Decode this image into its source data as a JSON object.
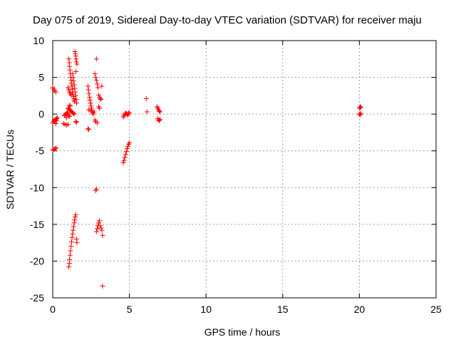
{
  "chart_data": {
    "type": "scatter",
    "title": "Day 075 of 2019, Sidereal Day-to-day VTEC variation (SDTVAR) for receiver maju",
    "xlabel": "GPS time / hours",
    "ylabel": "SDTVAR / TECUs",
    "xlim": [
      0,
      25
    ],
    "ylim": [
      -25,
      10
    ],
    "xticks": [
      0,
      5,
      10,
      15,
      20,
      25
    ],
    "yticks": [
      10,
      5,
      0,
      -5,
      -10,
      -15,
      -20,
      -25
    ],
    "grid": true,
    "marker": "+",
    "series": [
      {
        "name": "SDTVAR",
        "color": "#ff0000",
        "points": [
          [
            0.0,
            3.6
          ],
          [
            0.05,
            3.4
          ],
          [
            0.12,
            3.2
          ],
          [
            0.2,
            3.0
          ],
          [
            0.0,
            -1.2
          ],
          [
            0.05,
            -1.0
          ],
          [
            0.1,
            -0.9
          ],
          [
            0.15,
            -0.8
          ],
          [
            0.2,
            -0.7
          ],
          [
            0.25,
            -0.6
          ],
          [
            0.3,
            -0.5
          ],
          [
            0.2,
            -1.3
          ],
          [
            0.25,
            -0.9
          ],
          [
            0.0,
            -4.9
          ],
          [
            0.08,
            -4.8
          ],
          [
            0.15,
            -4.7
          ],
          [
            0.22,
            -4.6
          ],
          [
            0.7,
            -1.3
          ],
          [
            0.8,
            -1.4
          ],
          [
            0.9,
            -1.5
          ],
          [
            1.0,
            -1.4
          ],
          [
            0.75,
            -0.2
          ],
          [
            0.8,
            -0.1
          ],
          [
            0.85,
            0.0
          ],
          [
            0.9,
            0.1
          ],
          [
            0.95,
            0.2
          ],
          [
            1.0,
            0.0
          ],
          [
            1.05,
            -0.2
          ],
          [
            1.1,
            -0.3
          ],
          [
            0.9,
            -0.5
          ],
          [
            1.0,
            0.8
          ],
          [
            1.05,
            0.7
          ],
          [
            1.1,
            0.6
          ],
          [
            1.15,
            0.5
          ],
          [
            1.2,
            0.4
          ],
          [
            1.25,
            0.3
          ],
          [
            1.3,
            0.2
          ],
          [
            1.35,
            0.1
          ],
          [
            1.4,
            0.0
          ],
          [
            1.05,
            7.5
          ],
          [
            1.08,
            7.0
          ],
          [
            1.1,
            6.5
          ],
          [
            1.12,
            6.0
          ],
          [
            1.15,
            5.5
          ],
          [
            1.18,
            5.0
          ],
          [
            1.2,
            4.6
          ],
          [
            1.22,
            4.2
          ],
          [
            1.25,
            3.8
          ],
          [
            1.28,
            3.4
          ],
          [
            1.3,
            3.0
          ],
          [
            1.32,
            2.7
          ],
          [
            1.35,
            2.4
          ],
          [
            1.38,
            2.1
          ],
          [
            1.4,
            1.9
          ],
          [
            1.43,
            1.7
          ],
          [
            1.1,
            1.2
          ],
          [
            1.15,
            1.1
          ],
          [
            1.0,
            3.6
          ],
          [
            1.05,
            3.3
          ],
          [
            1.1,
            3.0
          ],
          [
            1.15,
            2.8
          ],
          [
            1.2,
            2.6
          ],
          [
            1.3,
            5.5
          ],
          [
            1.33,
            5.0
          ],
          [
            1.36,
            4.5
          ],
          [
            1.4,
            4.0
          ],
          [
            1.43,
            3.5
          ],
          [
            1.46,
            3.0
          ],
          [
            1.5,
            2.5
          ],
          [
            1.53,
            2.0
          ],
          [
            1.56,
            1.5
          ],
          [
            1.45,
            8.5
          ],
          [
            1.48,
            8.2
          ],
          [
            1.5,
            7.9
          ],
          [
            1.52,
            7.5
          ],
          [
            1.55,
            7.1
          ],
          [
            1.58,
            6.8
          ],
          [
            1.52,
            5.8
          ],
          [
            1.5,
            -1.0
          ],
          [
            1.55,
            -1.1
          ],
          [
            1.05,
            -20.8
          ],
          [
            1.08,
            -20.3
          ],
          [
            1.1,
            -19.8
          ],
          [
            1.13,
            -19.2
          ],
          [
            1.16,
            -18.6
          ],
          [
            1.2,
            -18.0
          ],
          [
            1.23,
            -17.4
          ],
          [
            1.26,
            -16.8
          ],
          [
            1.3,
            -16.3
          ],
          [
            1.33,
            -15.8
          ],
          [
            1.36,
            -15.3
          ],
          [
            1.4,
            -14.8
          ],
          [
            1.43,
            -14.4
          ],
          [
            1.46,
            -14.0
          ],
          [
            1.5,
            -13.7
          ],
          [
            1.55,
            -17.0
          ],
          [
            1.58,
            -17.5
          ],
          [
            2.3,
            -2.0
          ],
          [
            2.35,
            -2.1
          ],
          [
            2.3,
            3.8
          ],
          [
            2.33,
            3.3
          ],
          [
            2.36,
            2.8
          ],
          [
            2.4,
            2.3
          ],
          [
            2.43,
            1.9
          ],
          [
            2.46,
            1.5
          ],
          [
            2.5,
            1.1
          ],
          [
            2.53,
            0.8
          ],
          [
            2.56,
            0.5
          ],
          [
            2.6,
            0.2
          ],
          [
            2.65,
            0.0
          ],
          [
            2.35,
            0.6
          ],
          [
            2.5,
            0.4
          ],
          [
            2.7,
            0.3
          ],
          [
            2.75,
            -0.8
          ],
          [
            2.8,
            -1.0
          ],
          [
            2.9,
            -1.2
          ],
          [
            2.75,
            5.5
          ],
          [
            2.8,
            5.0
          ],
          [
            2.85,
            4.6
          ],
          [
            2.9,
            4.1
          ],
          [
            2.95,
            3.6
          ],
          [
            2.85,
            7.5
          ],
          [
            2.8,
            -10.4
          ],
          [
            2.85,
            -10.2
          ],
          [
            3.0,
            2.6
          ],
          [
            3.05,
            2.3
          ],
          [
            3.1,
            2.1
          ],
          [
            3.15,
            2.0
          ],
          [
            3.2,
            3.8
          ],
          [
            3.0,
            1.0
          ],
          [
            3.05,
            0.8
          ],
          [
            2.85,
            -16.0
          ],
          [
            2.9,
            -15.6
          ],
          [
            2.95,
            -15.2
          ],
          [
            3.0,
            -14.8
          ],
          [
            3.05,
            -14.5
          ],
          [
            3.1,
            -15.2
          ],
          [
            3.15,
            -15.5
          ],
          [
            3.2,
            -15.8
          ],
          [
            3.25,
            -16.5
          ],
          [
            3.25,
            -23.4
          ],
          [
            4.6,
            -6.6
          ],
          [
            4.65,
            -6.3
          ],
          [
            4.7,
            -5.9
          ],
          [
            4.75,
            -5.5
          ],
          [
            4.8,
            -5.1
          ],
          [
            4.85,
            -4.7
          ],
          [
            4.9,
            -4.4
          ],
          [
            4.95,
            -4.1
          ],
          [
            5.0,
            -3.9
          ],
          [
            4.6,
            -0.4
          ],
          [
            4.65,
            -0.2
          ],
          [
            4.7,
            0.0
          ],
          [
            4.75,
            0.1
          ],
          [
            4.8,
            0.1
          ],
          [
            4.85,
            0.0
          ],
          [
            4.9,
            -0.1
          ],
          [
            4.95,
            0.1
          ],
          [
            5.0,
            0.2
          ],
          [
            6.1,
            2.1
          ],
          [
            6.15,
            0.3
          ],
          [
            6.8,
            1.0
          ],
          [
            6.85,
            0.8
          ],
          [
            6.9,
            0.6
          ],
          [
            6.95,
            0.4
          ],
          [
            7.0,
            0.3
          ],
          [
            6.85,
            -0.6
          ],
          [
            6.9,
            -0.8
          ],
          [
            6.95,
            -0.9
          ],
          [
            7.0,
            -0.7
          ],
          [
            20.0,
            0.8
          ],
          [
            20.05,
            1.0
          ],
          [
            20.1,
            0.9
          ],
          [
            20.0,
            0.0
          ],
          [
            20.05,
            -0.1
          ],
          [
            20.1,
            0.1
          ]
        ]
      }
    ]
  }
}
